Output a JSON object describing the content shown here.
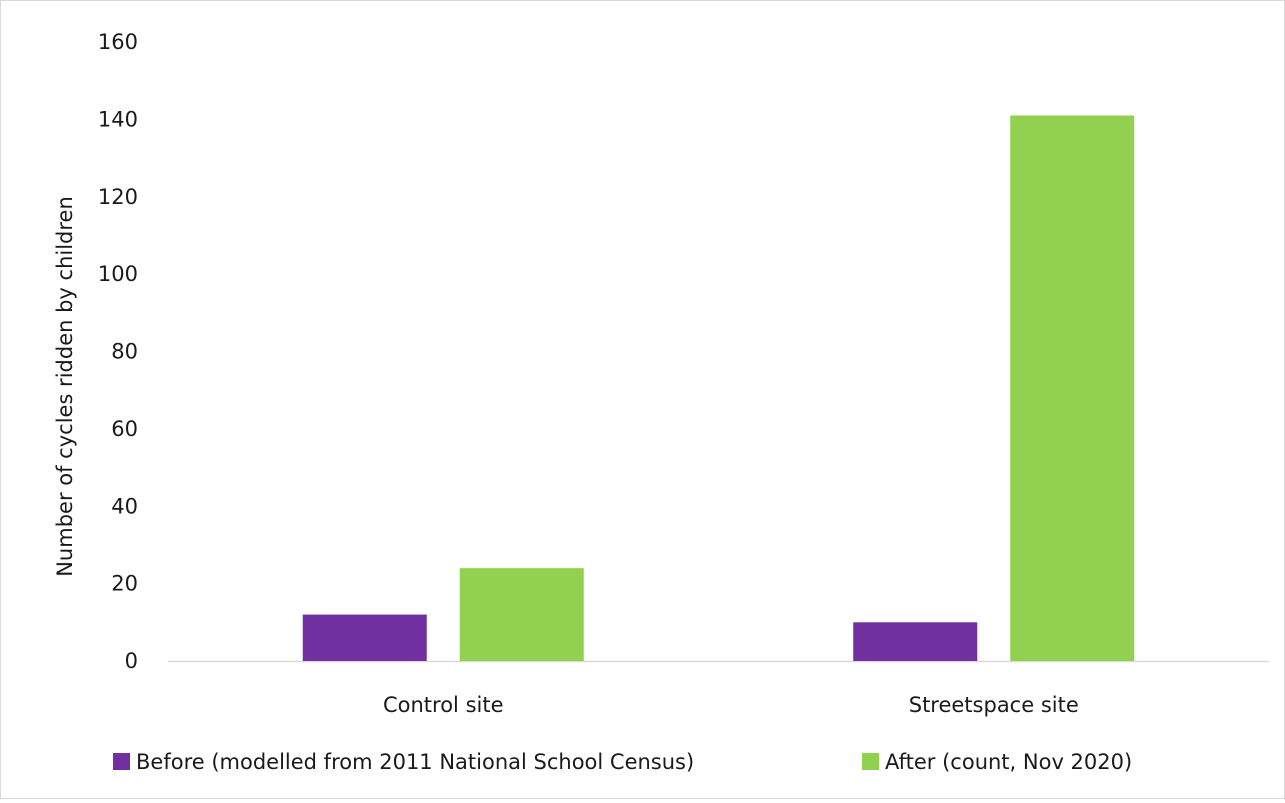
{
  "chart_data": {
    "type": "bar",
    "title": "",
    "xlabel": "",
    "ylabel": "Number of cycles ridden by children",
    "categories": [
      "Control site",
      "Streetspace site"
    ],
    "series": [
      {
        "name": "Before (modelled from 2011 National School Census)",
        "color": "#7030a0",
        "values": [
          12,
          10
        ]
      },
      {
        "name": "After (count, Nov 2020)",
        "color": "#92d050",
        "values": [
          24,
          141
        ]
      }
    ],
    "ylim": [
      0,
      160
    ],
    "yticks": [
      0,
      20,
      40,
      60,
      80,
      100,
      120,
      140,
      160
    ],
    "grid": false,
    "legend_position": "bottom"
  }
}
